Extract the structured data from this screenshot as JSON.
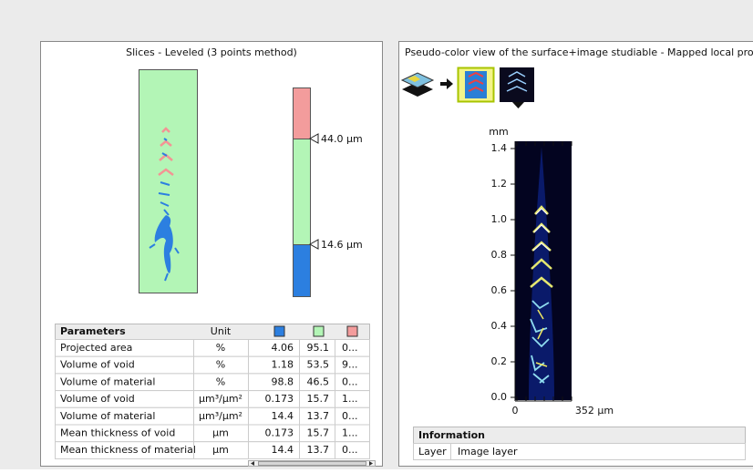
{
  "left_panel": {
    "title": "Slices - Leveled (3 points method)",
    "thresholds": [
      "44.0 µm",
      "14.6 µm"
    ],
    "table": {
      "header": [
        "Parameters",
        "Unit"
      ],
      "rows": [
        [
          "Projected area",
          "%",
          "4.06",
          "95.1",
          "0..."
        ],
        [
          "Volume of void",
          "%",
          "1.18",
          "53.5",
          "9..."
        ],
        [
          "Volume of material",
          "%",
          "98.8",
          "46.5",
          "0..."
        ],
        [
          "Volume of void",
          "µm³/µm²",
          "0.173",
          "15.7",
          "1..."
        ],
        [
          "Volume of material",
          "µm³/µm²",
          "14.4",
          "13.7",
          "0..."
        ],
        [
          "Mean thickness of void",
          "µm",
          "0.173",
          "15.7",
          "1..."
        ],
        [
          "Mean thickness of material",
          "µm",
          "14.4",
          "13.7",
          "0..."
        ]
      ]
    }
  },
  "right_panel": {
    "title": "Pseudo-color view of the surface+image studiable - Mapped local prope...",
    "axis": {
      "y_unit": "mm",
      "y_ticks": [
        "1.4",
        "1.2",
        "1.0",
        "0.8",
        "0.6",
        "0.4",
        "0.2",
        "0.0"
      ],
      "x_ticks": [
        "0",
        "352 µm"
      ]
    },
    "info": {
      "header": "Information",
      "rows": [
        [
          "Layer",
          "Image layer"
        ]
      ]
    }
  }
}
